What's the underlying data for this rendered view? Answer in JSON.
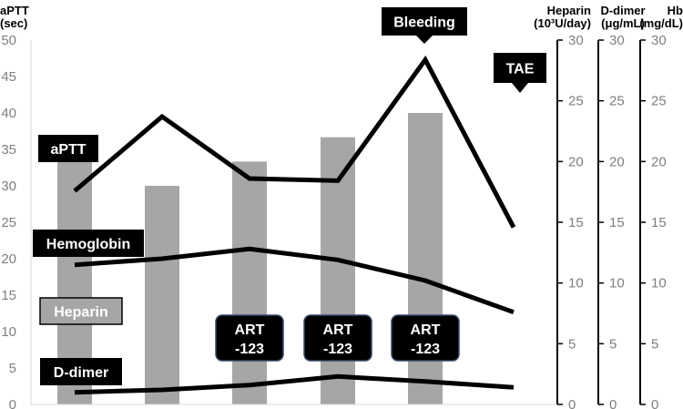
{
  "colors": {
    "bar": "#a6a6a6",
    "line": "#000000",
    "tick": "#7f7f7f",
    "label_bg": "#000000",
    "label_text": "#ffffff",
    "heparin_label_bg": "#a6a6a6",
    "heparin_label_text": "#ffffff"
  },
  "chart_data": {
    "type": "bar+line",
    "grid": false,
    "x": [
      1,
      2,
      3,
      4,
      5,
      6
    ],
    "axes": {
      "left": {
        "title": "aPTT",
        "title_unit": "(sec)",
        "min": 0,
        "max": 50,
        "ticks": [
          "0",
          "5",
          "10",
          "15",
          "20",
          "25",
          "30",
          "35",
          "40",
          "45",
          "50"
        ]
      },
      "heparin": {
        "title": "Heparin",
        "title_unit": "(10³U/day)",
        "min": 0,
        "max": 30,
        "ticks": [
          "0",
          "5",
          "10",
          "15",
          "20",
          "25",
          "30"
        ]
      },
      "ddimer": {
        "title": "D-dimer",
        "title_unit": "(μg/mL)",
        "min": 0,
        "max": 30,
        "ticks": [
          "0",
          "5",
          "10",
          "15",
          "20",
          "25",
          "30"
        ]
      },
      "hb": {
        "title": "Hb",
        "title_unit": "(mg/dL)",
        "min": 0,
        "max": 30,
        "ticks": [
          "0",
          "5",
          "10",
          "15",
          "20",
          "25",
          "30"
        ]
      }
    },
    "bars": {
      "name": "Heparin",
      "axis": "heparin",
      "values": [
        20,
        18,
        20,
        22,
        24,
        null
      ]
    },
    "lines": [
      {
        "name": "aPTT",
        "axis": "left",
        "values": [
          29.3,
          39.5,
          31.0,
          30.7,
          47.3,
          24.3
        ]
      },
      {
        "name": "Hemoglobin",
        "axis": "hb",
        "values": [
          11.5,
          12.0,
          12.8,
          11.9,
          10.2,
          7.6
        ]
      },
      {
        "name": "D-dimer",
        "axis": "ddimer",
        "values": [
          1.0,
          1.2,
          1.6,
          2.3,
          1.9,
          1.4
        ]
      }
    ],
    "series_labels": [
      "aPTT",
      "Hemoglobin",
      "Heparin",
      "D-dimer"
    ],
    "annotations": [
      {
        "text": "Bleeding",
        "x": 5
      },
      {
        "text": "TAE",
        "x": 6
      }
    ],
    "art_labels": [
      {
        "x": 3,
        "line1": "ART",
        "line2": "-123"
      },
      {
        "x": 4,
        "line1": "ART",
        "line2": "-123"
      },
      {
        "x": 5,
        "line1": "ART",
        "line2": "-123"
      }
    ]
  }
}
